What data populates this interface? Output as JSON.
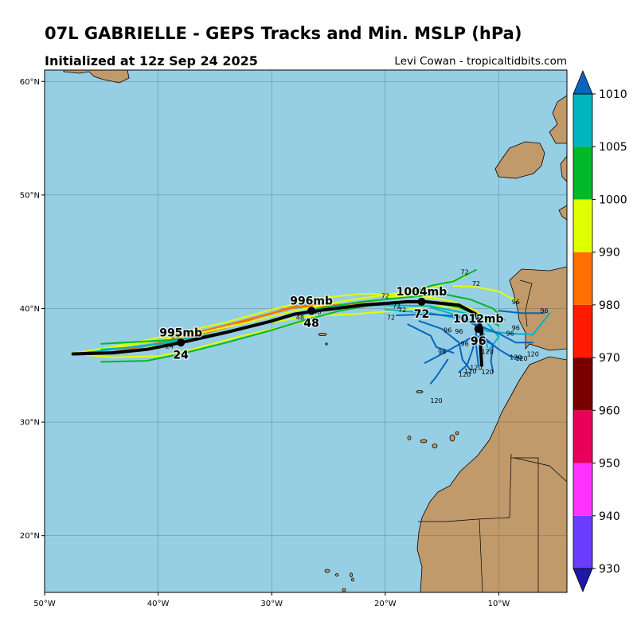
{
  "header": {
    "title": "07L GABRIELLE - GEPS Tracks and Min. MSLP (hPa)",
    "init": "Initialized at 12z Sep 24 2025",
    "credit": "Levi Cowan - tropicaltidbits.com"
  },
  "map": {
    "lon_range": [
      -50,
      -4
    ],
    "lat_range": [
      15,
      61
    ],
    "lat_ticks": [
      {
        "lat": 60,
        "label": "60°N"
      },
      {
        "lat": 50,
        "label": "50°N"
      },
      {
        "lat": 40,
        "label": "40°N"
      },
      {
        "lat": 30,
        "label": "30°N"
      },
      {
        "lat": 20,
        "label": "20°N"
      }
    ],
    "lon_ticks": [
      {
        "lon": -50,
        "label": "50°W"
      },
      {
        "lon": -40,
        "label": "40°W"
      },
      {
        "lon": -30,
        "label": "30°W"
      },
      {
        "lon": -20,
        "label": "20°W"
      },
      {
        "lon": -10,
        "label": "10°W"
      }
    ],
    "ocean_color": "#96cee4",
    "land_color": "#c09a6b",
    "grid": true
  },
  "colorbar": {
    "levels": [
      930,
      940,
      950,
      960,
      970,
      980,
      990,
      1000,
      1005,
      1010
    ],
    "labels": [
      "930",
      "940",
      "950",
      "960",
      "970",
      "980",
      "990",
      "1000",
      "1005",
      "1010"
    ],
    "colors": [
      "#1a1aa6",
      "#6a3cff",
      "#ff33ff",
      "#e8005a",
      "#7a0000",
      "#ff1a00",
      "#ff7000",
      "#e0ff00",
      "#00b828",
      "#00b4c0",
      "#0a64c0"
    ]
  },
  "ensemble_mean_track": {
    "points": [
      [
        -47.5,
        36.0
      ],
      [
        -44,
        36.1
      ],
      [
        -41,
        36.4
      ],
      [
        -38,
        37.0
      ],
      [
        -34,
        37.9
      ],
      [
        -30,
        38.9
      ],
      [
        -28,
        39.5
      ],
      [
        -26,
        39.8
      ],
      [
        -22,
        40.3
      ],
      [
        -18,
        40.6
      ],
      [
        -16.5,
        40.6
      ],
      [
        -13.5,
        40.3
      ],
      [
        -12,
        39.5
      ],
      [
        -11.5,
        38.2
      ],
      [
        -11.6,
        36.5
      ],
      [
        -11.5,
        35
      ]
    ]
  },
  "annotations": [
    {
      "name": "pressure-24",
      "mslp": "995mb",
      "hour": "24",
      "lon": -38,
      "lat": 37.0
    },
    {
      "name": "pressure-48",
      "mslp": "996mb",
      "hour": "48",
      "lon": -26.5,
      "lat": 39.8
    },
    {
      "name": "pressure-72",
      "mslp": "1004mb",
      "hour": "72",
      "lon": -16.8,
      "lat": 40.6
    },
    {
      "name": "pressure-96",
      "mslp": "1012mb",
      "hour": "96",
      "lon": -11.8,
      "lat": 38.2
    }
  ],
  "hour_markers": [
    {
      "t": "72",
      "lon": -13,
      "lat": 43.0
    },
    {
      "t": "72",
      "lon": -12,
      "lat": 42.0
    },
    {
      "t": "72",
      "lon": -20,
      "lat": 40.9
    },
    {
      "t": "72",
      "lon": -19,
      "lat": 40.0
    },
    {
      "t": "72",
      "lon": -19.5,
      "lat": 39.0
    },
    {
      "t": "72",
      "lon": -18.5,
      "lat": 39.7
    },
    {
      "t": "96",
      "lon": -8.5,
      "lat": 40.4
    },
    {
      "t": "96",
      "lon": -6,
      "lat": 39.6
    },
    {
      "t": "96",
      "lon": -8.5,
      "lat": 38.1
    },
    {
      "t": "96",
      "lon": -13.5,
      "lat": 37.8
    },
    {
      "t": "96",
      "lon": -14.5,
      "lat": 37.9
    },
    {
      "t": "96",
      "lon": -13,
      "lat": 36.7
    },
    {
      "t": "96",
      "lon": -15,
      "lat": 36.0
    },
    {
      "t": "96",
      "lon": -9,
      "lat": 37.6
    },
    {
      "t": "120",
      "lon": -11,
      "lat": 36.0
    },
    {
      "t": "120",
      "lon": -8,
      "lat": 35.4
    },
    {
      "t": "120",
      "lon": -7,
      "lat": 35.8
    },
    {
      "t": "120",
      "lon": -12,
      "lat": 34.6
    },
    {
      "t": "120",
      "lon": -12.5,
      "lat": 34.3
    },
    {
      "t": "120",
      "lon": -13,
      "lat": 34.0
    },
    {
      "t": "120",
      "lon": -11,
      "lat": 34.2
    },
    {
      "t": "120",
      "lon": -15.5,
      "lat": 31.7
    },
    {
      "t": "120",
      "lon": -8.5,
      "lat": 35.5
    },
    {
      "t": "48",
      "lon": -26,
      "lat": 39.5
    },
    {
      "t": "48",
      "lon": -27.5,
      "lat": 39.0
    },
    {
      "t": "24",
      "lon": -39,
      "lat": 36.5
    },
    {
      "t": "24",
      "lon": -38.5,
      "lat": 37.4
    }
  ],
  "members": [
    {
      "color": "#ff7000",
      "pts": [
        [
          -46,
          36.2
        ],
        [
          -42,
          36.6
        ],
        [
          -38,
          37.3
        ],
        [
          -34,
          38.3
        ],
        [
          -31,
          39.3
        ],
        [
          -28,
          40.1
        ],
        [
          -26,
          40.2
        ],
        [
          -23,
          40.4
        ],
        [
          -20,
          40.5
        ],
        [
          -17,
          40.5
        ]
      ]
    },
    {
      "color": "#ff7000",
      "pts": [
        [
          -45,
          36.0
        ],
        [
          -41,
          36.7
        ],
        [
          -37,
          37.8
        ],
        [
          -33,
          38.8
        ],
        [
          -30,
          39.6
        ],
        [
          -28,
          40.2
        ],
        [
          -25,
          40.4
        ]
      ]
    },
    {
      "color": "#e0ff00",
      "pts": [
        [
          -47.5,
          36.1
        ],
        [
          -44,
          36.5
        ],
        [
          -40,
          37.2
        ],
        [
          -36,
          37.9
        ],
        [
          -32,
          38.8
        ],
        [
          -28,
          39.8
        ],
        [
          -24,
          40.6
        ],
        [
          -20,
          41.2
        ],
        [
          -16,
          41.8
        ],
        [
          -13,
          42.8
        ]
      ]
    },
    {
      "color": "#e0ff00",
      "pts": [
        [
          -47.5,
          36.0
        ],
        [
          -44,
          35.7
        ],
        [
          -40,
          35.8
        ],
        [
          -37,
          36.4
        ],
        [
          -33,
          37.5
        ],
        [
          -29,
          38.4
        ],
        [
          -27,
          38.9
        ]
      ]
    },
    {
      "color": "#e0ff00",
      "pts": [
        [
          -46,
          36.3
        ],
        [
          -42,
          37.0
        ],
        [
          -38,
          37.9
        ],
        [
          -34,
          38.8
        ],
        [
          -30,
          39.9
        ],
        [
          -26,
          40.9
        ],
        [
          -22,
          41.3
        ],
        [
          -18,
          41.2
        ],
        [
          -15,
          40.8
        ]
      ]
    },
    {
      "color": "#e0ff00",
      "pts": [
        [
          -45,
          36.0
        ],
        [
          -42,
          36.3
        ],
        [
          -39,
          37.0
        ],
        [
          -35,
          37.8
        ],
        [
          -31,
          38.6
        ],
        [
          -27,
          39.3
        ],
        [
          -23,
          39.5
        ],
        [
          -19,
          39.8
        ],
        [
          -16,
          40.2
        ],
        [
          -13,
          40.0
        ]
      ]
    },
    {
      "color": "#e0ff00",
      "pts": [
        [
          -14,
          42.0
        ],
        [
          -12,
          41.9
        ],
        [
          -10,
          41.5
        ],
        [
          -8.5,
          40.7
        ]
      ]
    },
    {
      "color": "#e0ff00",
      "pts": [
        [
          -20,
          41.0
        ],
        [
          -17,
          41.2
        ],
        [
          -14,
          40.6
        ],
        [
          -12,
          39.8
        ],
        [
          -11,
          38.9
        ]
      ]
    },
    {
      "color": "#00b828",
      "pts": [
        [
          -45,
          36.9
        ],
        [
          -41,
          37.1
        ],
        [
          -38,
          37.3
        ]
      ]
    },
    {
      "color": "#00b828",
      "pts": [
        [
          -45,
          35.3
        ],
        [
          -41,
          35.4
        ],
        [
          -38,
          36.0
        ],
        [
          -34,
          37.0
        ],
        [
          -30,
          38.1
        ],
        [
          -27,
          39.0
        ],
        [
          -24,
          39.8
        ],
        [
          -20,
          40.5
        ],
        [
          -16,
          40.6
        ],
        [
          -13.5,
          40.1
        ],
        [
          -11.5,
          39.3
        ],
        [
          -10,
          38.5
        ]
      ]
    },
    {
      "color": "#00b828",
      "pts": [
        [
          -26,
          40.0
        ],
        [
          -22,
          40.6
        ],
        [
          -18,
          41.0
        ],
        [
          -15,
          41.3
        ],
        [
          -12.5,
          40.8
        ],
        [
          -10.5,
          40.0
        ],
        [
          -9.5,
          39.0
        ]
      ]
    },
    {
      "color": "#00b828",
      "pts": [
        [
          -18,
          41.3
        ],
        [
          -16,
          42.0
        ],
        [
          -14,
          42.4
        ],
        [
          -12,
          43.4
        ]
      ]
    },
    {
      "color": "#00b4c0",
      "pts": [
        [
          -47.5,
          36.0
        ],
        [
          -44,
          36.4
        ],
        [
          -40,
          36.9
        ],
        [
          -36,
          37.6
        ],
        [
          -32,
          38.4
        ],
        [
          -28,
          39.5
        ],
        [
          -24,
          40.2
        ],
        [
          -20,
          40.3
        ],
        [
          -16,
          40.2
        ],
        [
          -13,
          39.6
        ],
        [
          -11,
          38.7
        ],
        [
          -10,
          37.5
        ],
        [
          -11,
          36.2
        ]
      ]
    },
    {
      "color": "#00b4c0",
      "pts": [
        [
          -45,
          36.4
        ],
        [
          -42,
          36.6
        ],
        [
          -38,
          37.1
        ]
      ]
    },
    {
      "color": "#00b4c0",
      "pts": [
        [
          -20,
          39.9
        ],
        [
          -16,
          39.6
        ],
        [
          -13,
          39.0
        ],
        [
          -11,
          38.0
        ],
        [
          -9,
          37.8
        ],
        [
          -7,
          37.7
        ],
        [
          -5.5,
          39.6
        ]
      ]
    },
    {
      "color": "#00b4c0",
      "pts": [
        [
          -16,
          40.1
        ],
        [
          -13,
          39.2
        ],
        [
          -11.5,
          38.4
        ],
        [
          -11,
          36.6
        ]
      ]
    },
    {
      "color": "#0a64c0",
      "pts": [
        [
          -19,
          39.4
        ],
        [
          -16,
          39.5
        ],
        [
          -13.5,
          39.3
        ],
        [
          -12,
          38.5
        ],
        [
          -12,
          36.8
        ],
        [
          -11.8,
          35.0
        ]
      ]
    },
    {
      "color": "#0a64c0",
      "pts": [
        [
          -18,
          38.6
        ],
        [
          -16,
          37.6
        ],
        [
          -15.5,
          36.6
        ],
        [
          -14,
          36.1
        ]
      ]
    },
    {
      "color": "#0a64c0",
      "pts": [
        [
          -17,
          38.9
        ],
        [
          -15,
          38.2
        ],
        [
          -13.5,
          37.0
        ],
        [
          -13.2,
          35.5
        ],
        [
          -12.5,
          34.6
        ]
      ]
    },
    {
      "color": "#0a64c0",
      "pts": [
        [
          -12.5,
          37.4
        ],
        [
          -15,
          36.0
        ],
        [
          -16.5,
          35.2
        ]
      ]
    },
    {
      "color": "#0a64c0",
      "pts": [
        [
          -14.5,
          35.5
        ],
        [
          -15.5,
          34.0
        ],
        [
          -16,
          33.4
        ]
      ]
    },
    {
      "color": "#0a64c0",
      "pts": [
        [
          -13,
          39.0
        ],
        [
          -10,
          37.8
        ],
        [
          -8.5,
          37.0
        ],
        [
          -7,
          37.0
        ]
      ]
    },
    {
      "color": "#0a64c0",
      "pts": [
        [
          -12,
          38.2
        ],
        [
          -11,
          37.2
        ],
        [
          -10,
          36.4
        ],
        [
          -9,
          35.8
        ],
        [
          -8,
          35.6
        ]
      ]
    },
    {
      "color": "#0a64c0",
      "pts": [
        [
          -12,
          37.8
        ],
        [
          -12.3,
          36.4
        ],
        [
          -12.8,
          35.0
        ],
        [
          -13.5,
          34.4
        ]
      ]
    },
    {
      "color": "#0a64c0",
      "pts": [
        [
          -10,
          39.8
        ],
        [
          -8,
          39.6
        ],
        [
          -6,
          39.6
        ]
      ]
    },
    {
      "color": "#0a64c0",
      "pts": [
        [
          -12,
          37.6
        ],
        [
          -10.5,
          36.8
        ],
        [
          -10.7,
          35.4
        ],
        [
          -10.5,
          34.4
        ]
      ]
    }
  ]
}
